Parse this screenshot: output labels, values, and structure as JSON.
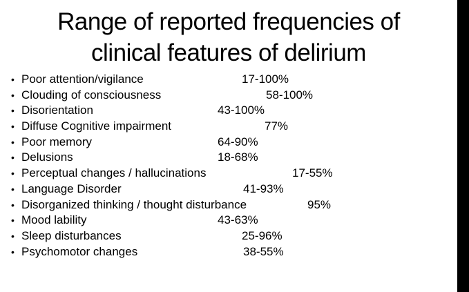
{
  "slide": {
    "title_lines": [
      "Range of reported frequencies of",
      "clinical features of delirium"
    ],
    "bullet_char": "•",
    "items": [
      {
        "label": "Poor attention/vigilance",
        "value": "17-100%"
      },
      {
        "label": "Clouding of consciousness",
        "value": "58-100%"
      },
      {
        "label": "Disorientation",
        "value": "43-100%"
      },
      {
        "label": "Diffuse Cognitive impairment",
        "value": "77%"
      },
      {
        "label": "Poor memory",
        "value": "64-90%"
      },
      {
        "label": "Delusions",
        "value": "18-68%"
      },
      {
        "label": "Perceptual changes / hallucinations",
        "value": "17-55%"
      },
      {
        "label": "Language Disorder",
        "value": "41-93%"
      },
      {
        "label": "Disorganized thinking / thought disturbance",
        "value": "95%"
      },
      {
        "label": "Mood lability",
        "value": "43-63%"
      },
      {
        "label": "Sleep disturbances",
        "value": "25-96%"
      },
      {
        "label": "Psychomotor changes",
        "value": "38-55%"
      }
    ]
  },
  "colors": {
    "background": "#ffffff",
    "text": "#000000",
    "bar": "#000000"
  }
}
